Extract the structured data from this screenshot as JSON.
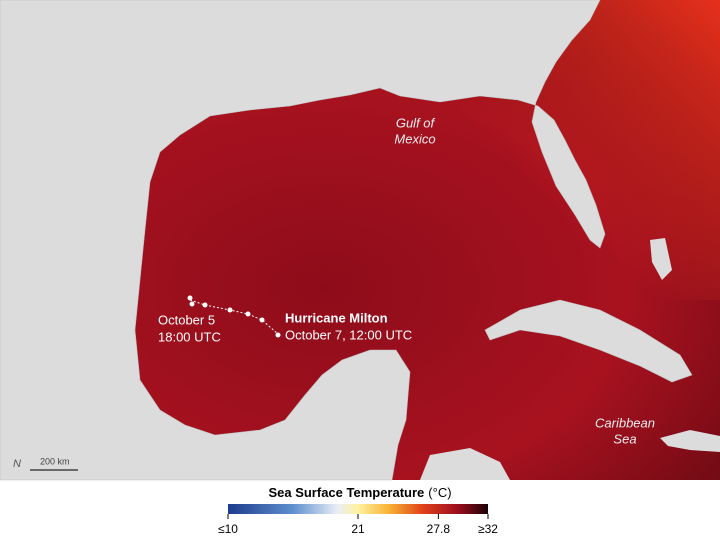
{
  "map": {
    "labels": {
      "gulf": [
        "Gulf of",
        "Mexico"
      ],
      "caribbean": [
        "Caribbean",
        "Sea"
      ]
    },
    "hurricane": {
      "name": "Hurricane Milton",
      "end": "October 7, 12:00 UTC",
      "start": [
        "October 5",
        "18:00 UTC"
      ]
    },
    "scale_bar": "200 km",
    "north": "N"
  },
  "colorbar": {
    "title": "Sea Surface Temperature",
    "unit": "(°C)",
    "lim": [
      10,
      32
    ],
    "ticks": [
      {
        "value": 10,
        "label": "≤10"
      },
      21,
      27.8,
      {
        "value": 32,
        "label": "≥32"
      }
    ]
  }
}
